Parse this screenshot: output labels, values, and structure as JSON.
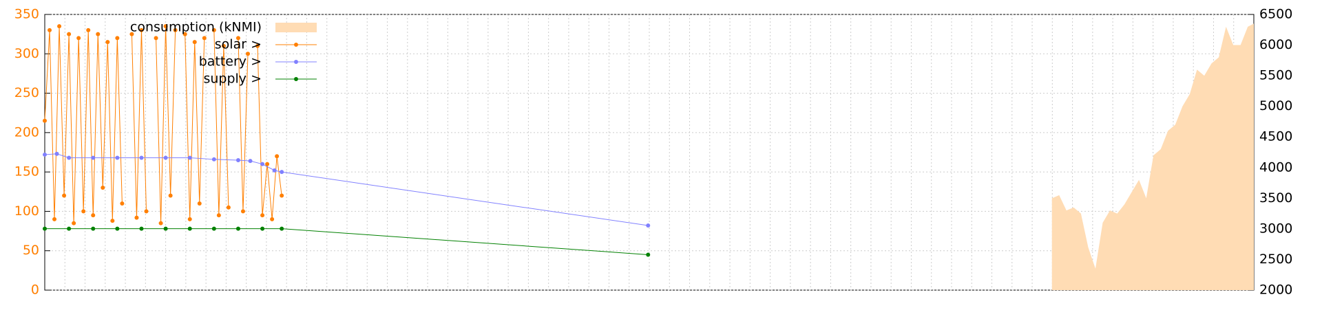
{
  "chart_data": {
    "type": "line",
    "grid": true,
    "legend": "top-left",
    "xlim": [
      0,
      100
    ],
    "ylim": [
      0,
      350
    ],
    "yticks": [
      0,
      50,
      100,
      150,
      200,
      250,
      300,
      350
    ],
    "ycolor": "#ff7f00",
    "y2lim": [
      2000,
      6500
    ],
    "y2ticks": [
      2000,
      2500,
      3000,
      3500,
      4000,
      4500,
      5000,
      5500,
      6000,
      6500
    ],
    "series": [
      {
        "name": "consumption (kNMI)",
        "type": "area",
        "axis": "y2",
        "color": "#ffdcb4",
        "x": [
          83.3,
          83.9,
          84.5,
          85.1,
          85.7,
          86.3,
          86.9,
          87.5,
          88.1,
          88.7,
          89.3,
          89.9,
          90.5,
          91.1,
          91.7,
          92.3,
          92.9,
          93.5,
          94.1,
          94.7,
          95.3,
          95.9,
          96.5,
          97.1,
          97.7,
          98.3,
          98.9,
          99.5,
          100
        ],
        "values": [
          3500,
          3550,
          3300,
          3350,
          3250,
          2700,
          2350,
          3100,
          3300,
          3250,
          3400,
          3600,
          3800,
          3500,
          4200,
          4300,
          4600,
          4700,
          5000,
          5200,
          5600,
          5500,
          5700,
          5800,
          6300,
          6000,
          6000,
          6300,
          6350
        ]
      },
      {
        "name": "solar >",
        "type": "line",
        "color": "#ff7f00",
        "x": [
          0,
          0.4,
          0.8,
          1.2,
          1.6,
          2,
          2.4,
          2.8,
          3.2,
          3.6,
          4,
          4.4,
          4.8,
          5.2,
          5.6,
          6,
          6.4,
          6.8,
          7.2,
          7.6,
          8,
          8.4,
          8.8,
          9.2,
          9.6,
          10,
          10.4,
          10.8,
          11.2,
          11.6,
          12,
          12.4,
          12.8,
          13.2,
          13.6,
          14,
          14.4,
          14.8,
          15.2,
          15.6,
          16,
          16.4,
          16.8,
          17.2,
          17.6,
          18,
          18.4,
          18.8,
          19.2,
          19.6
        ],
        "values": [
          215,
          330,
          90,
          335,
          120,
          325,
          85,
          320,
          100,
          330,
          95,
          325,
          130,
          315,
          88,
          320,
          110,
          null,
          325,
          92,
          330,
          100,
          null,
          320,
          85,
          335,
          120,
          330,
          null,
          325,
          90,
          315,
          110,
          320,
          null,
          330,
          95,
          310,
          105,
          null,
          320,
          100,
          300,
          null,
          310,
          95,
          160,
          90,
          170,
          120
        ]
      },
      {
        "name": "battery >",
        "type": "line",
        "color": "#8080ff",
        "x": [
          0,
          1,
          2,
          4,
          6,
          8,
          10,
          12,
          14,
          16,
          17,
          18,
          19,
          19.6,
          49.9
        ],
        "values": [
          172,
          173,
          168,
          168,
          168,
          168,
          168,
          168,
          166,
          165,
          164,
          160,
          152,
          150,
          82
        ]
      },
      {
        "name": "supply >",
        "type": "line",
        "color": "#008000",
        "x": [
          0,
          2,
          4,
          6,
          8,
          10,
          12,
          14,
          16,
          18,
          19.6,
          49.9
        ],
        "values": [
          78,
          78,
          78,
          78,
          78,
          78,
          78,
          78,
          78,
          78,
          78,
          45
        ]
      }
    ]
  }
}
